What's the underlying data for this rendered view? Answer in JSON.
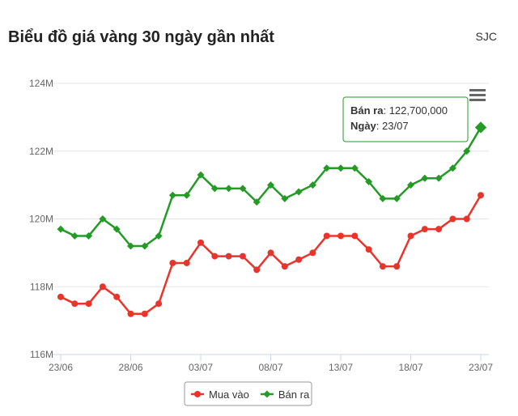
{
  "chart_data": {
    "type": "line",
    "title": "Biểu đồ giá vàng 30 ngày gần nhất",
    "subtitle": "SJC",
    "categories": [
      "23/06",
      null,
      null,
      null,
      null,
      "28/06",
      null,
      null,
      null,
      null,
      "03/07",
      null,
      null,
      null,
      null,
      "08/07",
      null,
      null,
      null,
      null,
      "13/07",
      null,
      null,
      null,
      null,
      "18/07",
      null,
      null,
      null,
      null,
      "23/07"
    ],
    "series": [
      {
        "name": "Mua vào",
        "color": "#e8352b",
        "marker": "circle",
        "values": [
          117700000,
          117500000,
          117500000,
          118000000,
          117700000,
          117200000,
          117200000,
          117500000,
          118700000,
          118700000,
          119300000,
          118900000,
          118900000,
          118900000,
          118500000,
          119000000,
          118600000,
          118800000,
          119000000,
          119500000,
          119500000,
          119500000,
          119100000,
          118600000,
          118600000,
          119500000,
          119700000,
          119700000,
          120000000,
          120000000,
          120700000
        ]
      },
      {
        "name": "Bán ra",
        "color": "#239b26",
        "marker": "diamond",
        "values": [
          119700000,
          119500000,
          119500000,
          120000000,
          119700000,
          119200000,
          119200000,
          119500000,
          120700000,
          120700000,
          121300000,
          120900000,
          120900000,
          120900000,
          120500000,
          121000000,
          120600000,
          120800000,
          121000000,
          121500000,
          121500000,
          121500000,
          121100000,
          120600000,
          120600000,
          121000000,
          121200000,
          121200000,
          121500000,
          122000000,
          122700000
        ]
      }
    ],
    "ylim": [
      116000000,
      124000000
    ],
    "yticks": [
      {
        "value": 116000000,
        "label": "116M"
      },
      {
        "value": 118000000,
        "label": "118M"
      },
      {
        "value": 120000000,
        "label": "120M"
      },
      {
        "value": 122000000,
        "label": "122M"
      },
      {
        "value": 124000000,
        "label": "124M"
      }
    ],
    "grid": true,
    "legend": "bottom",
    "tooltip": {
      "value": "122,700,000",
      "date_label": "Ngày",
      "date": "23/07"
    }
  }
}
